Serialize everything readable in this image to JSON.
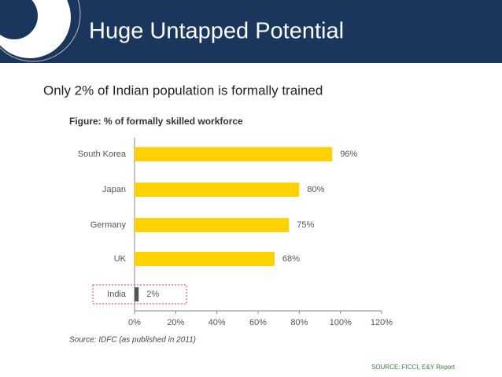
{
  "slide": {
    "title": "Huge Untapped Potential",
    "subtitle": "Only 2% of Indian population is formally trained",
    "source": "SOURCE: FICCI, E&Y Report"
  },
  "chart_data": {
    "type": "bar",
    "orientation": "horizontal",
    "title": "Figure: % of formally skilled workforce",
    "note": "Source: IDFC (as published in 2011)",
    "categories": [
      "South Korea",
      "Japan",
      "Germany",
      "UK",
      "India"
    ],
    "values": [
      96,
      80,
      75,
      68,
      2
    ],
    "value_labels": [
      "96%",
      "80%",
      "75%",
      "68%",
      "2%"
    ],
    "colors": [
      "#ffd200",
      "#ffd200",
      "#ffd200",
      "#ffd200",
      "#555555"
    ],
    "xlim": [
      0,
      120
    ],
    "xticks": [
      {
        "value": 0,
        "label": "0%"
      },
      {
        "value": 20,
        "label": "20%"
      },
      {
        "value": 40,
        "label": "40%"
      },
      {
        "value": 60,
        "label": "60%"
      },
      {
        "value": 80,
        "label": "80%"
      },
      {
        "value": 100,
        "label": "100%"
      },
      {
        "value": 120,
        "label": "120%"
      }
    ]
  }
}
